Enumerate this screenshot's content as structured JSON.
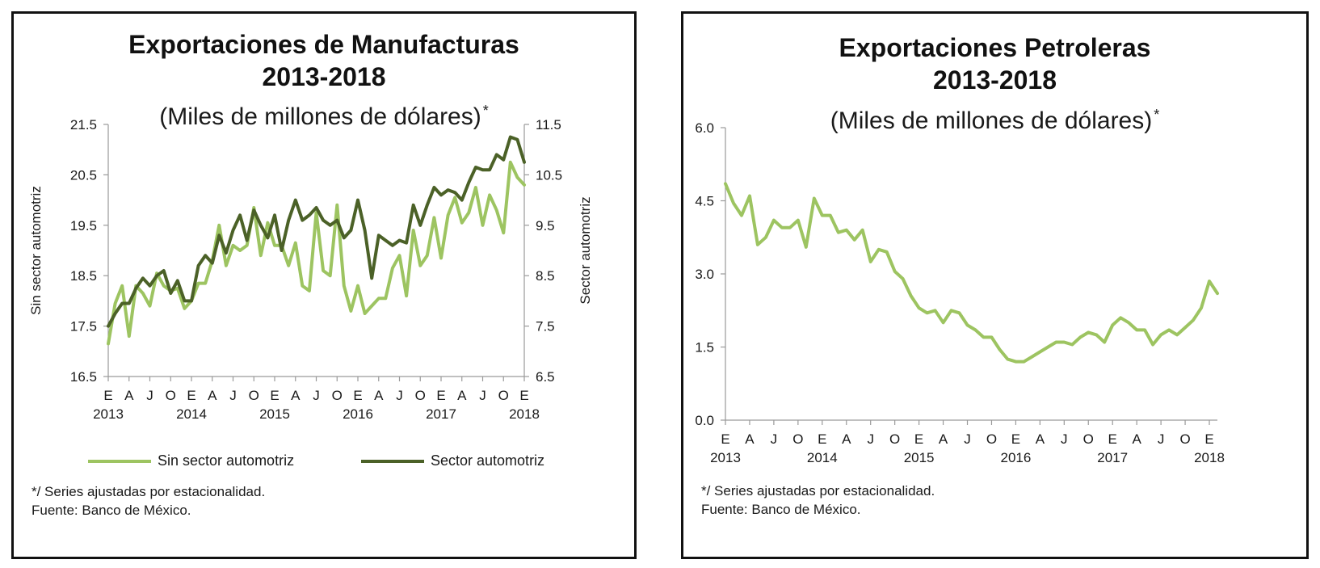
{
  "colors": {
    "light_green": "#9dc461",
    "dark_green": "#4b6127",
    "axis": "#9a9a9a",
    "border": "#111111"
  },
  "left_panel": {
    "title_line1": "Exportaciones de Manufacturas",
    "title_line2": "2013-2018",
    "subtitle": "(Miles de millones de dólares)",
    "subtitle_mark": "*",
    "y_left_label": "Sin sector automotriz",
    "y_right_label": "Sector automotriz",
    "legend": {
      "series1": "Sin sector automotriz",
      "series2": "Sector automotriz"
    },
    "footnote": "*/ Series ajustadas por estacionalidad.",
    "source": "Fuente: Banco de México."
  },
  "right_panel": {
    "title_line1": "Exportaciones Petroleras",
    "title_line2": "2013-2018",
    "subtitle": "(Miles de millones de dólares)",
    "subtitle_mark": "*",
    "footnote": "*/ Series ajustadas por estacionalidad.",
    "source": "Fuente: Banco de México."
  },
  "chart_data": [
    {
      "type": "line",
      "title": "Exportaciones de Manufacturas 2013-2018",
      "subtitle": "(Miles de millones de dólares)*",
      "xlabel": "",
      "ylabel": "Sin sector automotriz",
      "y2label": "Sector automotriz",
      "ylim": [
        16.5,
        21.5
      ],
      "y2lim": [
        6.5,
        11.5
      ],
      "yticks": [
        "16.5",
        "17.5",
        "18.5",
        "19.5",
        "20.5",
        "21.5"
      ],
      "y2ticks": [
        "6.5",
        "7.5",
        "8.5",
        "9.5",
        "10.5",
        "11.5"
      ],
      "x_month_ticks": [
        "E",
        "A",
        "J",
        "O",
        "E",
        "A",
        "J",
        "O",
        "E",
        "A",
        "J",
        "O",
        "E",
        "A",
        "J",
        "O",
        "E",
        "A",
        "J",
        "O",
        "E"
      ],
      "x_year_labels": [
        "2013",
        "2014",
        "2015",
        "2016",
        "2017",
        "2018"
      ],
      "legend_position": "bottom",
      "grid": false,
      "series": [
        {
          "name": "Sin sector automotriz",
          "axis": "left",
          "color": "#9dc461",
          "values": [
            17.15,
            17.95,
            18.3,
            17.3,
            18.3,
            18.15,
            17.9,
            18.55,
            18.3,
            18.2,
            18.25,
            17.85,
            18.0,
            18.35,
            18.35,
            18.8,
            19.5,
            18.7,
            19.1,
            19.0,
            19.1,
            19.85,
            18.9,
            19.55,
            19.1,
            19.1,
            18.7,
            19.15,
            18.3,
            18.2,
            19.75,
            18.6,
            18.5,
            19.9,
            18.3,
            17.8,
            18.3,
            17.75,
            17.9,
            18.05,
            18.05,
            18.65,
            18.9,
            18.1,
            19.4,
            18.7,
            18.9,
            19.65,
            18.85,
            19.7,
            20.05,
            19.55,
            19.75,
            20.25,
            19.5,
            20.1,
            19.8,
            19.35,
            20.75,
            20.45,
            20.3
          ]
        },
        {
          "name": "Sector automotriz",
          "axis": "right",
          "color": "#4b6127",
          "values": [
            7.5,
            7.75,
            7.95,
            7.95,
            8.25,
            8.45,
            8.3,
            8.5,
            8.6,
            8.15,
            8.4,
            8.0,
            8.0,
            8.7,
            8.9,
            8.75,
            9.3,
            8.95,
            9.4,
            9.7,
            9.2,
            9.8,
            9.5,
            9.25,
            9.7,
            9.0,
            9.6,
            10.0,
            9.6,
            9.7,
            9.85,
            9.6,
            9.5,
            9.6,
            9.25,
            9.4,
            10.0,
            9.4,
            8.45,
            9.3,
            9.2,
            9.1,
            9.2,
            9.15,
            9.9,
            9.5,
            9.9,
            10.25,
            10.1,
            10.2,
            10.15,
            10.0,
            10.35,
            10.65,
            10.6,
            10.6,
            10.9,
            10.8,
            11.25,
            11.2,
            10.75
          ]
        }
      ]
    },
    {
      "type": "line",
      "title": "Exportaciones Petroleras 2013-2018",
      "subtitle": "(Miles de millones de dólares)*",
      "xlabel": "",
      "ylabel": "",
      "ylim": [
        0.0,
        6.0
      ],
      "yticks": [
        "0.0",
        "1.5",
        "3.0",
        "4.5",
        "6.0"
      ],
      "x_month_ticks": [
        "E",
        "A",
        "J",
        "O",
        "E",
        "A",
        "J",
        "O",
        "E",
        "A",
        "J",
        "O",
        "E",
        "A",
        "J",
        "O",
        "E",
        "A",
        "J",
        "O",
        "E"
      ],
      "x_year_labels": [
        "2013",
        "2014",
        "2015",
        "2016",
        "2017",
        "2018"
      ],
      "grid": false,
      "series": [
        {
          "name": "",
          "color": "#9dc461",
          "values": [
            4.85,
            4.45,
            4.2,
            4.6,
            3.6,
            3.75,
            4.1,
            3.95,
            3.95,
            4.1,
            3.55,
            4.55,
            4.2,
            4.2,
            3.85,
            3.9,
            3.7,
            3.9,
            3.25,
            3.5,
            3.45,
            3.05,
            2.9,
            2.55,
            2.3,
            2.2,
            2.25,
            2.0,
            2.25,
            2.2,
            1.95,
            1.85,
            1.7,
            1.7,
            1.45,
            1.25,
            1.2,
            1.2,
            1.3,
            1.4,
            1.5,
            1.6,
            1.6,
            1.55,
            1.7,
            1.8,
            1.75,
            1.6,
            1.95,
            2.1,
            2.0,
            1.85,
            1.85,
            1.55,
            1.75,
            1.85,
            1.75,
            1.9,
            2.05,
            2.3,
            2.85,
            2.6
          ]
        }
      ]
    }
  ]
}
